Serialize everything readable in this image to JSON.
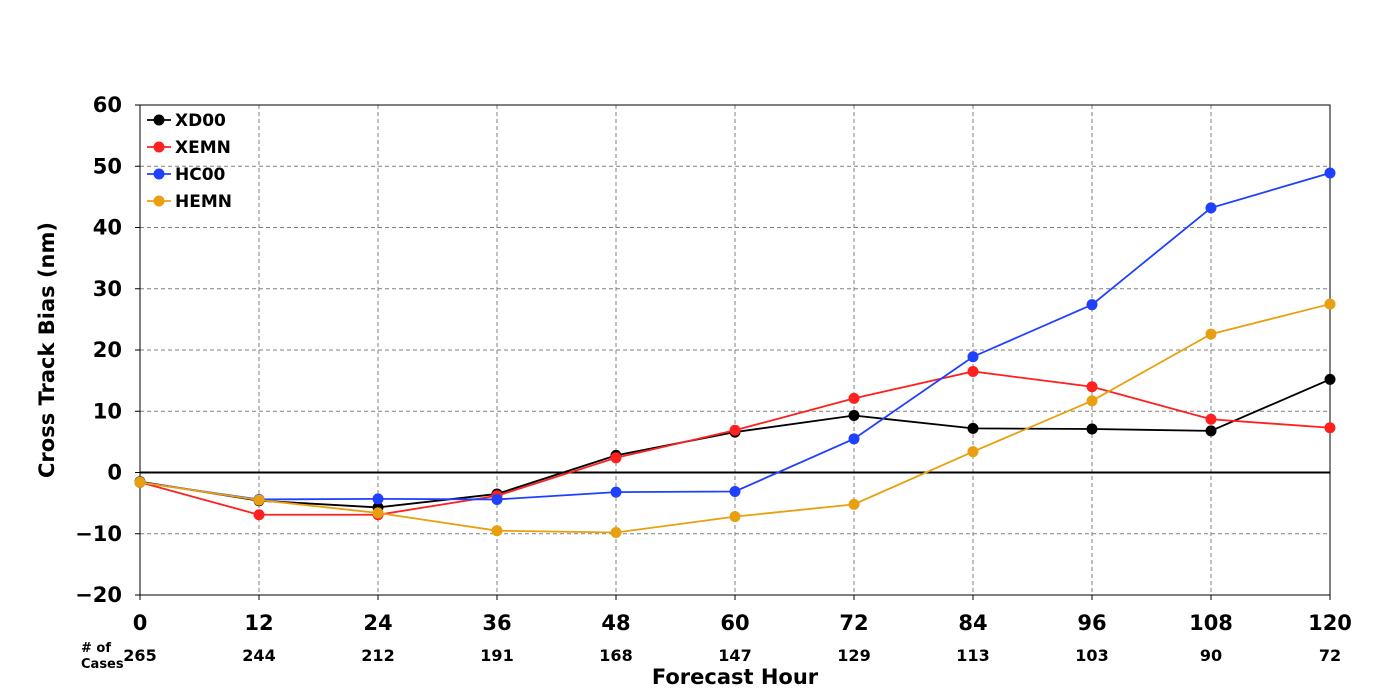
{
  "chart_data": {
    "type": "line",
    "xlabel": "Forecast Hour",
    "ylabel": "Cross Track Bias (nm)",
    "x": [
      0,
      12,
      24,
      36,
      48,
      60,
      72,
      84,
      96,
      108,
      120
    ],
    "xlim": [
      0,
      120
    ],
    "ylim": [
      -20,
      60
    ],
    "y_ticks": [
      -20,
      -10,
      0,
      10,
      20,
      30,
      40,
      50,
      60
    ],
    "y_tick_labels": [
      "−20",
      "−10",
      "0",
      "10",
      "20",
      "30",
      "40",
      "50",
      "60"
    ],
    "x_tick_labels": [
      "0",
      "12",
      "24",
      "36",
      "48",
      "60",
      "72",
      "84",
      "96",
      "108",
      "120"
    ],
    "grid": true,
    "legend_position": "top-left",
    "cases_label": [
      "# of",
      "Cases"
    ],
    "cases": [
      "265",
      "244",
      "212",
      "191",
      "168",
      "147",
      "129",
      "113",
      "103",
      "90",
      "72"
    ],
    "series": [
      {
        "name": "XD00",
        "color": "#000000",
        "values": [
          -1.5,
          -4.6,
          -5.7,
          -3.5,
          2.8,
          6.6,
          9.3,
          7.2,
          7.1,
          6.8,
          15.2
        ]
      },
      {
        "name": "XEMN",
        "color": "#ff2020",
        "values": [
          -1.6,
          -6.9,
          -6.9,
          -3.8,
          2.4,
          6.9,
          12.1,
          16.5,
          14.0,
          8.7,
          7.3
        ]
      },
      {
        "name": "HC00",
        "color": "#2040ff",
        "values": [
          -1.6,
          -4.4,
          -4.3,
          -4.4,
          -3.2,
          -3.1,
          5.5,
          18.9,
          27.4,
          43.2,
          48.9
        ]
      },
      {
        "name": "HEMN",
        "color": "#e8a010",
        "values": [
          -1.6,
          -4.5,
          -6.6,
          -9.5,
          -9.8,
          -7.2,
          -5.2,
          3.4,
          11.7,
          22.6,
          27.5
        ]
      }
    ]
  }
}
